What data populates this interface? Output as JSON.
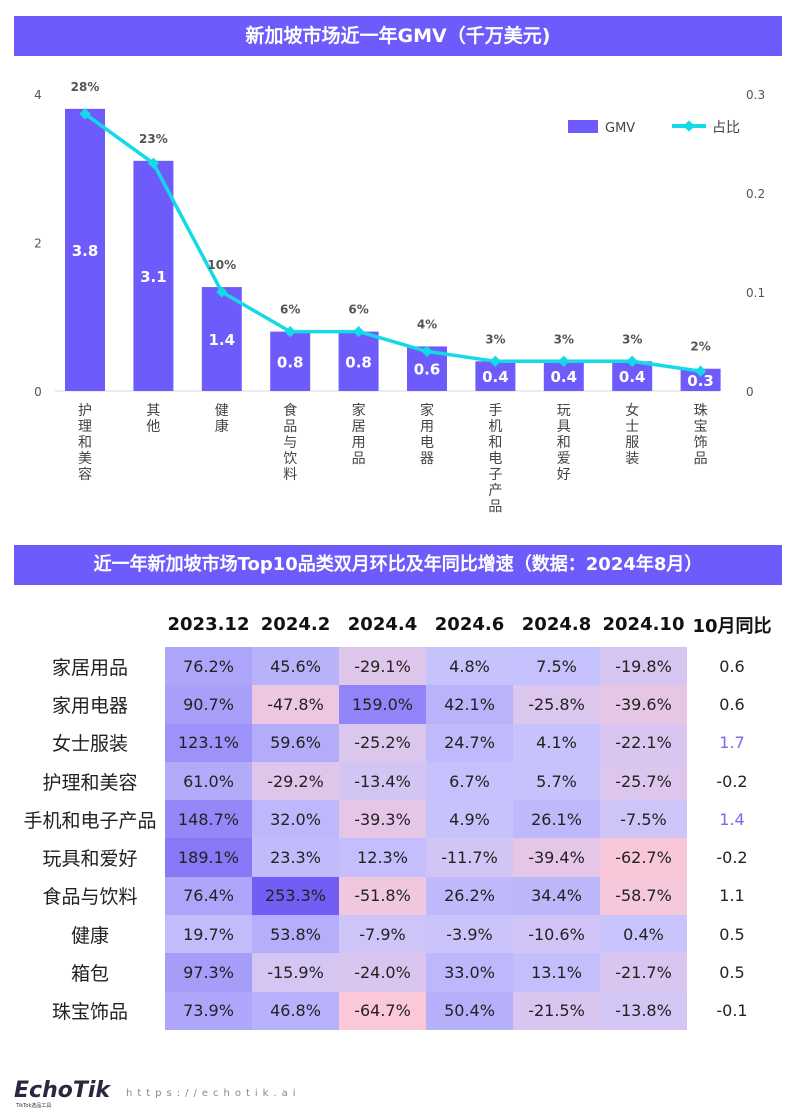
{
  "chart_title": "新加坡市场近一年GMV（千万美元)",
  "chart_data": {
    "type": "bar+line",
    "categories": [
      "护理和美容",
      "其他",
      "健康",
      "食品与饮料",
      "家居用品",
      "家用电器",
      "手机和电子产品",
      "玩具和爱好",
      "女士服装",
      "珠宝饰品"
    ],
    "series": [
      {
        "name": "GMV",
        "type": "bar",
        "axis": "left",
        "values": [
          3.8,
          3.1,
          1.4,
          0.8,
          0.8,
          0.6,
          0.4,
          0.4,
          0.4,
          0.3
        ],
        "color": "#6e5bfb"
      },
      {
        "name": "占比",
        "type": "line",
        "axis": "right",
        "values": [
          0.28,
          0.23,
          0.1,
          0.06,
          0.06,
          0.04,
          0.03,
          0.03,
          0.03,
          0.02
        ],
        "labels": [
          "28%",
          "23%",
          "10%",
          "6%",
          "6%",
          "4%",
          "3%",
          "3%",
          "3%",
          "2%"
        ],
        "color": "#14d9e6"
      }
    ],
    "left_ticks": [
      "0",
      "2",
      "4"
    ],
    "ylim": [
      0,
      4
    ],
    "right_ticks": [
      "0",
      "0.1",
      "0.2",
      "0.3"
    ],
    "y2lim": [
      0,
      0.3
    ],
    "legend": "top-right",
    "grid": false
  },
  "table_title": "近一年新加坡市场Top10品类双月环比及年同比增速（数据：2024年8月）",
  "table": {
    "headers": [
      "2023.12",
      "2024.2",
      "2024.4",
      "2024.6",
      "2024.8",
      "2024.10",
      "10月同比"
    ],
    "rows": [
      {
        "label": "家居用品",
        "values": [
          "76.2%",
          "45.6%",
          "-29.1%",
          "4.8%",
          "7.5%",
          "-19.8%"
        ],
        "yoy": "0.6"
      },
      {
        "label": "家用电器",
        "values": [
          "90.7%",
          "-47.8%",
          "159.0%",
          "42.1%",
          "-25.8%",
          "-39.6%"
        ],
        "yoy": "0.6"
      },
      {
        "label": "女士服装",
        "values": [
          "123.1%",
          "59.6%",
          "-25.2%",
          "24.7%",
          "4.1%",
          "-22.1%"
        ],
        "yoy": "1.7",
        "highlight": true
      },
      {
        "label": "护理和美容",
        "values": [
          "61.0%",
          "-29.2%",
          "-13.4%",
          "6.7%",
          "5.7%",
          "-25.7%"
        ],
        "yoy": "-0.2"
      },
      {
        "label": "手机和电子产品",
        "values": [
          "148.7%",
          "32.0%",
          "-39.3%",
          "4.9%",
          "26.1%",
          "-7.5%"
        ],
        "yoy": "1.4",
        "highlight": true
      },
      {
        "label": "玩具和爱好",
        "values": [
          "189.1%",
          "23.3%",
          "12.3%",
          "-11.7%",
          "-39.4%",
          "-62.7%"
        ],
        "yoy": "-0.2"
      },
      {
        "label": "食品与饮料",
        "values": [
          "76.4%",
          "253.3%",
          "-51.8%",
          "26.2%",
          "34.4%",
          "-58.7%"
        ],
        "yoy": "1.1"
      },
      {
        "label": "健康",
        "values": [
          "19.7%",
          "53.8%",
          "-7.9%",
          "-3.9%",
          "-10.6%",
          "0.4%"
        ],
        "yoy": "0.5"
      },
      {
        "label": "箱包",
        "values": [
          "97.3%",
          "-15.9%",
          "-24.0%",
          "33.0%",
          "13.1%",
          "-21.7%"
        ],
        "yoy": "0.5"
      },
      {
        "label": "珠宝饰品",
        "values": [
          "73.9%",
          "46.8%",
          "-64.7%",
          "50.4%",
          "-21.5%",
          "-13.8%"
        ],
        "yoy": "-0.1"
      }
    ]
  },
  "footer": {
    "logo": "EchoTik",
    "logo_sub": "TikTok选品工具",
    "url": "https://echotik.ai"
  }
}
